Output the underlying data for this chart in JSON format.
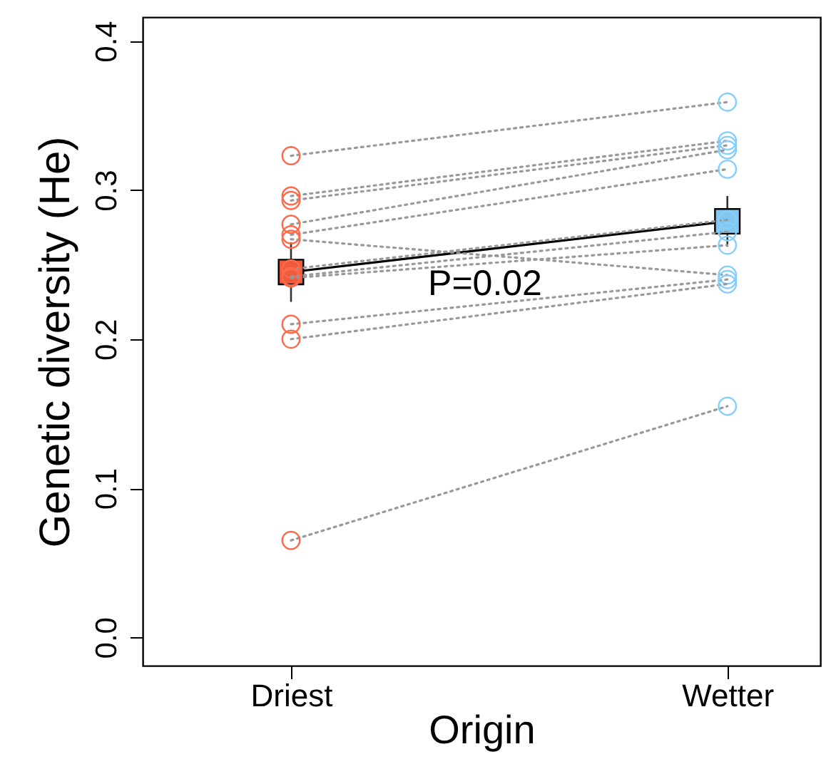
{
  "chart_data": {
    "type": "line",
    "xlabel": "Origin",
    "ylabel": "Genetic diversity (He)",
    "categories": [
      "Driest",
      "Wetter"
    ],
    "ylim": [
      -0.019,
      0.416
    ],
    "yticks": [
      {
        "value": 0,
        "label": "0.0"
      },
      {
        "value": 0.1,
        "label": "0.1"
      },
      {
        "value": 0.2,
        "label": "0.2"
      },
      {
        "value": 0.3,
        "label": "0.3"
      },
      {
        "value": 0.4,
        "label": "0.4"
      }
    ],
    "grid": false,
    "annotations": [
      "P=0.02"
    ],
    "series": [
      {
        "color": "#999999",
        "line_style": "dotted",
        "marker": "circle",
        "colors": [
          "#fb6a4a",
          "#87cefa"
        ],
        "values": [
          0.323,
          0.359
        ]
      },
      {
        "color": "#999999",
        "line_style": "dotted",
        "marker": "circle",
        "colors": [
          "#fb6a4a",
          "#87cefa"
        ],
        "values": [
          0.296,
          0.333
        ]
      },
      {
        "color": "#999999",
        "line_style": "dotted",
        "marker": "circle",
        "colors": [
          "#fb6a4a",
          "#87cefa"
        ],
        "values": [
          0.293,
          0.33
        ]
      },
      {
        "color": "#999999",
        "line_style": "dotted",
        "marker": "circle",
        "colors": [
          "#fb6a4a",
          "#87cefa"
        ],
        "values": [
          0.277,
          0.327
        ]
      },
      {
        "color": "#999999",
        "line_style": "dotted",
        "marker": "circle",
        "colors": [
          "#fb6a4a",
          "#87cefa"
        ],
        "values": [
          0.27,
          0.314
        ]
      },
      {
        "color": "#999999",
        "line_style": "dotted",
        "marker": "circle",
        "colors": [
          "#fb6a4a",
          "#87cefa"
        ],
        "values": [
          0.267,
          0.243
        ]
      },
      {
        "color": "#999999",
        "line_style": "dotted",
        "marker": "circle",
        "colors": [
          "#fb6a4a",
          "#87cefa"
        ],
        "values": [
          0.247,
          0.28
        ]
      },
      {
        "color": "#999999",
        "line_style": "dotted",
        "marker": "circle",
        "colors": [
          "#fb6a4a",
          "#87cefa"
        ],
        "values": [
          0.242,
          0.272
        ]
      },
      {
        "color": "#999999",
        "line_style": "dotted",
        "marker": "circle",
        "colors": [
          "#fb6a4a",
          "#87cefa"
        ],
        "values": [
          0.241,
          0.263
        ]
      },
      {
        "color": "#999999",
        "line_style": "dotted",
        "marker": "circle",
        "colors": [
          "#fb6a4a",
          "#87cefa"
        ],
        "values": [
          0.21,
          0.24
        ]
      },
      {
        "color": "#999999",
        "line_style": "dotted",
        "marker": "circle",
        "colors": [
          "#fb6a4a",
          "#87cefa"
        ],
        "values": [
          0.2,
          0.237
        ]
      },
      {
        "color": "#999999",
        "line_style": "dotted",
        "marker": "circle",
        "colors": [
          "#fb6a4a",
          "#87cefa"
        ],
        "values": [
          0.065,
          0.155
        ]
      },
      {
        "color": "#000000",
        "line_style": "solid",
        "marker": "square",
        "colors": [
          "#f25a3c",
          "#80c8f0"
        ],
        "values": [
          0.245,
          0.279
        ],
        "errors": [
          0.02,
          0.017
        ]
      }
    ]
  }
}
